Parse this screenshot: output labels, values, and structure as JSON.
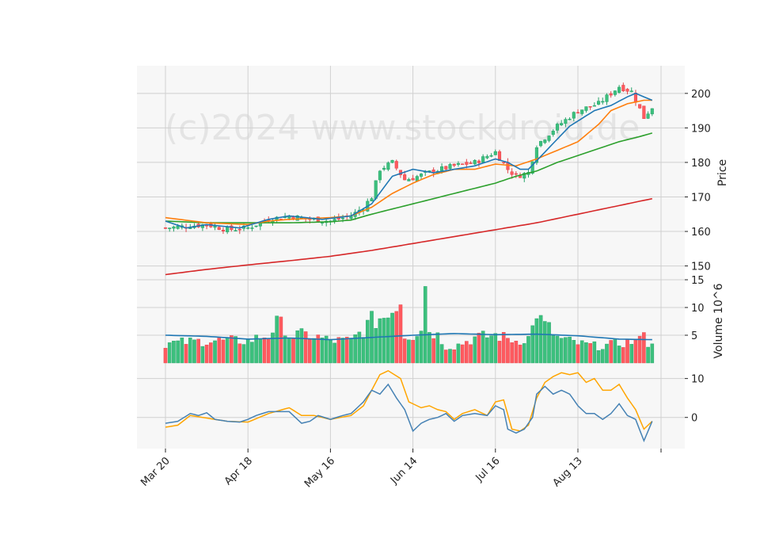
{
  "watermark": "(c)2024 www.stockdroid.de",
  "chart_data": {
    "type": "candlestick",
    "x_tick_labels": [
      "Mar 20",
      "Apr 18",
      "May 16",
      "Jun 14",
      "Jul 16",
      "Aug 13"
    ],
    "x_tick_index": [
      0,
      20,
      40,
      60,
      80,
      100
    ],
    "num_bars": 119,
    "colors": {
      "up": "#26a269",
      "down": "#e0454a",
      "up_fill": "#3cc07d",
      "down_fill": "#ff5a5f",
      "ma_fast": "#1f77b4",
      "ma_mid": "#ff7f0e",
      "ma_slow": "#2ca02c",
      "ma_long": "#d62728",
      "vol_ma": "#1f77b4",
      "macd": "#4682b4",
      "signal": "#ffa500",
      "panel_bg": "#f7f7f7",
      "grid": "#d0d0d0"
    },
    "price_panel": {
      "ylabel": "Price",
      "ylim": [
        146,
        208
      ],
      "yticks": [
        150,
        160,
        170,
        180,
        190,
        200
      ],
      "anchors": [
        [
          0,
          161
        ],
        [
          5,
          161.5
        ],
        [
          10,
          162
        ],
        [
          15,
          160.5
        ],
        [
          20,
          161
        ],
        [
          25,
          163.5
        ],
        [
          30,
          164.5
        ],
        [
          35,
          163.5
        ],
        [
          40,
          163
        ],
        [
          45,
          164.5
        ],
        [
          48,
          167
        ],
        [
          50,
          170
        ],
        [
          52,
          178
        ],
        [
          55,
          180
        ],
        [
          58,
          175
        ],
        [
          60,
          175.5
        ],
        [
          65,
          177.5
        ],
        [
          70,
          179
        ],
        [
          75,
          180
        ],
        [
          80,
          183
        ],
        [
          83,
          178
        ],
        [
          85,
          176
        ],
        [
          88,
          177
        ],
        [
          90,
          185
        ],
        [
          95,
          190.5
        ],
        [
          100,
          195
        ],
        [
          105,
          197
        ],
        [
          110,
          202
        ],
        [
          113,
          200.5
        ],
        [
          116,
          193
        ],
        [
          118,
          196
        ]
      ],
      "ma_fast": [
        [
          0,
          163
        ],
        [
          5,
          161
        ],
        [
          10,
          162
        ],
        [
          18,
          161
        ],
        [
          25,
          163.5
        ],
        [
          30,
          164.5
        ],
        [
          38,
          163.5
        ],
        [
          45,
          164.5
        ],
        [
          50,
          168
        ],
        [
          55,
          176
        ],
        [
          60,
          178
        ],
        [
          65,
          177
        ],
        [
          70,
          178
        ],
        [
          75,
          179
        ],
        [
          80,
          181
        ],
        [
          83,
          180
        ],
        [
          86,
          178
        ],
        [
          88,
          178
        ],
        [
          92,
          183
        ],
        [
          98,
          190.5
        ],
        [
          104,
          195
        ],
        [
          108,
          196.5
        ],
        [
          112,
          199
        ],
        [
          114,
          200
        ],
        [
          118,
          198
        ]
      ],
      "ma_mid": [
        [
          0,
          164
        ],
        [
          10,
          162.5
        ],
        [
          20,
          162
        ],
        [
          25,
          163
        ],
        [
          30,
          163.5
        ],
        [
          40,
          164
        ],
        [
          45,
          164.5
        ],
        [
          50,
          167
        ],
        [
          55,
          171
        ],
        [
          60,
          174
        ],
        [
          65,
          176.5
        ],
        [
          70,
          178
        ],
        [
          75,
          178
        ],
        [
          80,
          179.5
        ],
        [
          85,
          179
        ],
        [
          90,
          181
        ],
        [
          100,
          186
        ],
        [
          105,
          191
        ],
        [
          108,
          195
        ],
        [
          112,
          197
        ],
        [
          116,
          198
        ],
        [
          118,
          198
        ]
      ],
      "ma_slow": [
        [
          0,
          163
        ],
        [
          10,
          162.5
        ],
        [
          20,
          162.5
        ],
        [
          30,
          162.5
        ],
        [
          40,
          162.8
        ],
        [
          45,
          163.3
        ],
        [
          50,
          165
        ],
        [
          55,
          166.5
        ],
        [
          60,
          168
        ],
        [
          70,
          171
        ],
        [
          80,
          174
        ],
        [
          85,
          176
        ],
        [
          90,
          177.5
        ],
        [
          95,
          180
        ],
        [
          100,
          182
        ],
        [
          105,
          184
        ],
        [
          110,
          186
        ],
        [
          115,
          187.5
        ],
        [
          118,
          188.5
        ]
      ],
      "ma_long": [
        [
          0,
          147.5
        ],
        [
          10,
          149
        ],
        [
          20,
          150.3
        ],
        [
          30,
          151.5
        ],
        [
          40,
          152.8
        ],
        [
          50,
          154.5
        ],
        [
          60,
          156.5
        ],
        [
          70,
          158.5
        ],
        [
          80,
          160.5
        ],
        [
          90,
          162.5
        ],
        [
          100,
          165
        ],
        [
          110,
          167.5
        ],
        [
          118,
          169.5
        ]
      ]
    },
    "volume_panel": {
      "ylabel": "Volume  10^6",
      "ylim": [
        0,
        15
      ],
      "yticks": [
        5,
        10,
        15
      ],
      "anchors": [
        [
          0,
          3.5
        ],
        [
          10,
          4
        ],
        [
          20,
          4
        ],
        [
          25,
          5
        ],
        [
          28,
          8
        ],
        [
          30,
          5
        ],
        [
          35,
          5
        ],
        [
          40,
          4
        ],
        [
          45,
          4
        ],
        [
          48,
          6
        ],
        [
          50,
          7.5
        ],
        [
          52,
          8
        ],
        [
          55,
          9
        ],
        [
          57,
          11
        ],
        [
          58,
          5
        ],
        [
          60,
          5
        ],
        [
          62,
          6.5
        ],
        [
          63,
          13.8
        ],
        [
          64,
          6
        ],
        [
          66,
          5
        ],
        [
          68,
          3
        ],
        [
          70,
          3
        ],
        [
          75,
          4.5
        ],
        [
          80,
          5
        ],
        [
          85,
          4
        ],
        [
          88,
          4.5
        ],
        [
          90,
          8
        ],
        [
          92,
          7
        ],
        [
          95,
          4.5
        ],
        [
          100,
          3.5
        ],
        [
          105,
          3
        ],
        [
          110,
          3.5
        ],
        [
          115,
          4
        ],
        [
          118,
          3
        ]
      ],
      "spikes": [
        [
          28,
          8.3
        ],
        [
          52,
          8
        ],
        [
          55,
          9
        ],
        [
          57,
          10.5
        ],
        [
          63,
          13.8
        ],
        [
          90,
          8
        ],
        [
          92,
          7.5
        ],
        [
          116,
          5.5
        ]
      ],
      "ma": [
        [
          0,
          5
        ],
        [
          10,
          4.8
        ],
        [
          20,
          4.3
        ],
        [
          30,
          4.5
        ],
        [
          40,
          4.2
        ],
        [
          50,
          4.6
        ],
        [
          60,
          5
        ],
        [
          70,
          5.3
        ],
        [
          80,
          5.1
        ],
        [
          90,
          5.2
        ],
        [
          100,
          4.9
        ],
        [
          110,
          4.3
        ],
        [
          118,
          4.2
        ]
      ]
    },
    "macd_panel": {
      "ylim": [
        -8,
        14
      ],
      "yticks": [
        0,
        10
      ],
      "macd": [
        [
          0,
          -1.5
        ],
        [
          3,
          -1
        ],
        [
          6,
          1
        ],
        [
          8,
          0.5
        ],
        [
          10,
          1.2
        ],
        [
          12,
          -0.5
        ],
        [
          15,
          -1
        ],
        [
          18,
          -1.2
        ],
        [
          20,
          -0.5
        ],
        [
          22,
          0.5
        ],
        [
          25,
          1.5
        ],
        [
          30,
          1.5
        ],
        [
          33,
          -1.5
        ],
        [
          35,
          -1
        ],
        [
          37,
          0.5
        ],
        [
          40,
          -0.5
        ],
        [
          43,
          0.5
        ],
        [
          45,
          1
        ],
        [
          48,
          4
        ],
        [
          50,
          7
        ],
        [
          52,
          6
        ],
        [
          54,
          8.5
        ],
        [
          56,
          5
        ],
        [
          58,
          2
        ],
        [
          60,
          -3.5
        ],
        [
          62,
          -1.5
        ],
        [
          64,
          -0.5
        ],
        [
          66,
          0
        ],
        [
          68,
          1
        ],
        [
          70,
          -1
        ],
        [
          72,
          0.5
        ],
        [
          75,
          1
        ],
        [
          78,
          0.5
        ],
        [
          80,
          3
        ],
        [
          82,
          2
        ],
        [
          83,
          -3
        ],
        [
          85,
          -4
        ],
        [
          87,
          -3
        ],
        [
          89,
          0
        ],
        [
          90,
          6
        ],
        [
          92,
          8
        ],
        [
          94,
          6
        ],
        [
          96,
          7
        ],
        [
          98,
          6
        ],
        [
          100,
          3
        ],
        [
          102,
          1
        ],
        [
          104,
          1
        ],
        [
          106,
          -0.5
        ],
        [
          108,
          1
        ],
        [
          110,
          3.5
        ],
        [
          112,
          0.5
        ],
        [
          114,
          -0.5
        ],
        [
          116,
          -6
        ],
        [
          118,
          -1
        ]
      ],
      "signal": [
        [
          0,
          -2.5
        ],
        [
          3,
          -2
        ],
        [
          6,
          0.5
        ],
        [
          9,
          0
        ],
        [
          12,
          -0.5
        ],
        [
          15,
          -1
        ],
        [
          20,
          -1.2
        ],
        [
          25,
          1
        ],
        [
          30,
          2.5
        ],
        [
          33,
          0.5
        ],
        [
          36,
          0.5
        ],
        [
          40,
          -0.5
        ],
        [
          45,
          0.5
        ],
        [
          48,
          3
        ],
        [
          50,
          7
        ],
        [
          52,
          11
        ],
        [
          54,
          12
        ],
        [
          57,
          10
        ],
        [
          59,
          4
        ],
        [
          62,
          2.5
        ],
        [
          64,
          3
        ],
        [
          66,
          2
        ],
        [
          68,
          1.5
        ],
        [
          70,
          -0.5
        ],
        [
          72,
          1
        ],
        [
          75,
          2
        ],
        [
          78,
          0.5
        ],
        [
          80,
          4
        ],
        [
          82,
          4.5
        ],
        [
          84,
          -3
        ],
        [
          86,
          -3.5
        ],
        [
          88,
          -2
        ],
        [
          90,
          5
        ],
        [
          92,
          9
        ],
        [
          94,
          10.5
        ],
        [
          96,
          11.5
        ],
        [
          98,
          11
        ],
        [
          100,
          11.5
        ],
        [
          102,
          9
        ],
        [
          104,
          10
        ],
        [
          106,
          7
        ],
        [
          108,
          7
        ],
        [
          110,
          8.5
        ],
        [
          112,
          5
        ],
        [
          114,
          2
        ],
        [
          116,
          -3
        ],
        [
          118,
          -1
        ]
      ]
    }
  }
}
